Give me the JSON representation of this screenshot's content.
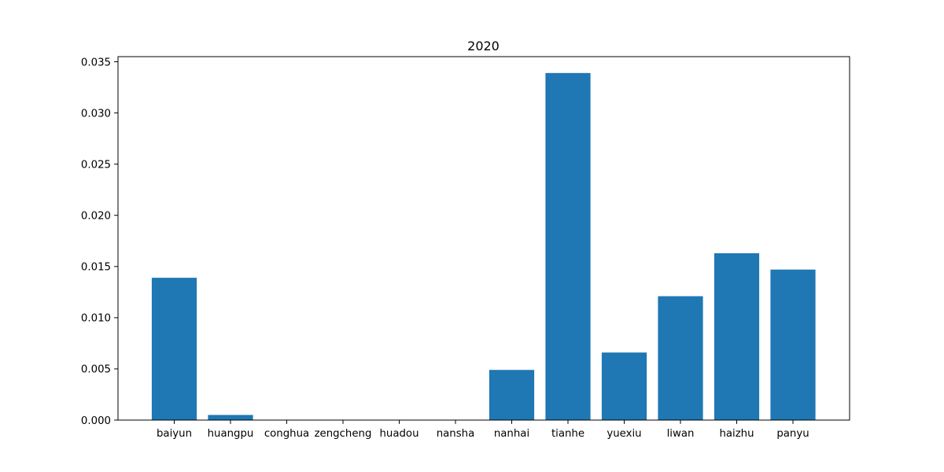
{
  "chart_data": {
    "type": "bar",
    "title": "2020",
    "xlabel": "",
    "ylabel": "",
    "categories": [
      "baiyun",
      "huangpu",
      "conghua",
      "zengcheng",
      "huadou",
      "nansha",
      "nanhai",
      "tianhe",
      "yuexiu",
      "liwan",
      "haizhu",
      "panyu"
    ],
    "values": [
      0.0139,
      0.0005,
      0.0,
      0.0,
      0.0,
      0.0,
      0.0049,
      0.0339,
      0.0066,
      0.0121,
      0.0163,
      0.0147
    ],
    "ylim": [
      0,
      0.0355
    ],
    "yticks": [
      0.0,
      0.005,
      0.01,
      0.015,
      0.02,
      0.025,
      0.03,
      0.035
    ],
    "ytick_labels": [
      "0.000",
      "0.005",
      "0.010",
      "0.015",
      "0.020",
      "0.025",
      "0.030",
      "0.035"
    ],
    "bar_color": "#1f77b4",
    "grid": false,
    "legend": "none"
  }
}
